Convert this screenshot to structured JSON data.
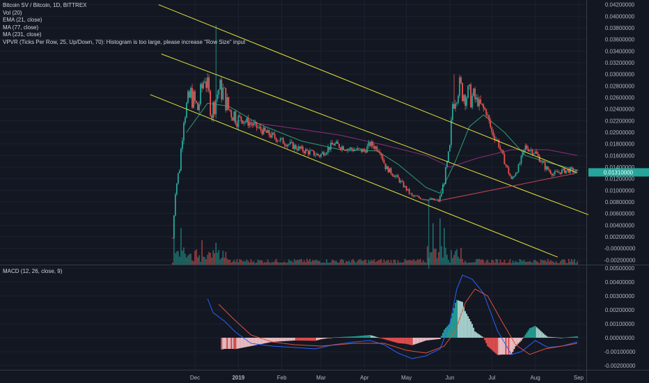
{
  "legend": {
    "symbol": "Bitcoin SV / Bitcoin, 1D, BITTREX",
    "indicators": [
      "Vol (20)",
      "EMA (21, close)",
      "MA (77, close)",
      "MA (231, close)",
      "VPVR (Ticks Per Row, 25, Up/Down, 70): Histogram is too large, please increase \"Row Size\" input"
    ],
    "macd": "MACD (12, 26, close, 9)"
  },
  "colors": {
    "background": "#131722",
    "grid": "#1e2230",
    "up": "#26a69a",
    "down": "#ef5350",
    "trendline": "#e7e63a",
    "support": "#c84650",
    "ema": "#2e9e73",
    "ma231": "#8a2f7d",
    "macd_line": "#2962ff",
    "signal_line": "#e04f3a",
    "text": "#b2b5be"
  },
  "chart_data": [
    {
      "type": "candlestick",
      "panel": "price",
      "x_axis_labels": [
        "Dec",
        "2019",
        "Feb",
        "Mar",
        "Apr",
        "May",
        "Jun",
        "Jul",
        "Aug",
        "Sep"
      ],
      "y_ticks": [
        "0.04200000",
        "0.04000000",
        "0.03800000",
        "0.03600000",
        "0.03400000",
        "0.03200000",
        "0.03000000",
        "0.02800000",
        "0.02600000",
        "0.02400000",
        "0.02200000",
        "0.02000000",
        "0.01800000",
        "0.01600000",
        "0.01400000",
        "0.01200000",
        "0.01000000",
        "0.00800000",
        "0.00600000",
        "0.00400000",
        "0.00200000",
        "-0.00000000",
        "-0.00200000"
      ],
      "ylim": [
        -0.0028,
        0.0428
      ],
      "date_range": [
        "2018-11-15",
        "2019-08-31"
      ],
      "current_price_label": "0.01310000",
      "close_keypoints": [
        [
          "2018-11-15",
          0.0018
        ],
        [
          "2018-11-17",
          0.01
        ],
        [
          "2018-11-20",
          0.014
        ],
        [
          "2018-11-23",
          0.023
        ],
        [
          "2018-11-28",
          0.0265
        ],
        [
          "2018-12-03",
          0.024
        ],
        [
          "2018-12-08",
          0.03
        ],
        [
          "2018-12-13",
          0.0235
        ],
        [
          "2018-12-18",
          0.0275
        ],
        [
          "2018-12-21",
          0.027
        ],
        [
          "2018-12-25",
          0.024
        ],
        [
          "2019-01-01",
          0.0225
        ],
        [
          "2019-01-10",
          0.0215
        ],
        [
          "2019-01-20",
          0.02
        ],
        [
          "2019-02-01",
          0.0185
        ],
        [
          "2019-02-15",
          0.017
        ],
        [
          "2019-02-28",
          0.016
        ],
        [
          "2019-03-10",
          0.018
        ],
        [
          "2019-03-20",
          0.0172
        ],
        [
          "2019-04-01",
          0.0168
        ],
        [
          "2019-04-05",
          0.018
        ],
        [
          "2019-04-12",
          0.017
        ],
        [
          "2019-04-16",
          0.014
        ],
        [
          "2019-04-25",
          0.012
        ],
        [
          "2019-05-05",
          0.009
        ],
        [
          "2019-05-15",
          0.0085
        ],
        [
          "2019-05-24",
          0.0082
        ],
        [
          "2019-05-26",
          0.0095
        ],
        [
          "2019-05-29",
          0.013
        ],
        [
          "2019-06-01",
          0.017
        ],
        [
          "2019-06-03",
          0.025
        ],
        [
          "2019-06-07",
          0.028
        ],
        [
          "2019-06-10",
          0.027
        ],
        [
          "2019-06-20",
          0.0255
        ],
        [
          "2019-06-27",
          0.0235
        ],
        [
          "2019-07-01",
          0.02
        ],
        [
          "2019-07-05",
          0.0185
        ],
        [
          "2019-07-10",
          0.015
        ],
        [
          "2019-07-15",
          0.0118
        ],
        [
          "2019-07-20",
          0.014
        ],
        [
          "2019-07-25",
          0.0175
        ],
        [
          "2019-08-01",
          0.0165
        ],
        [
          "2019-08-08",
          0.014
        ],
        [
          "2019-08-14",
          0.0128
        ],
        [
          "2019-08-20",
          0.0133
        ],
        [
          "2019-08-26",
          0.0135
        ],
        [
          "2019-08-31",
          0.0131
        ]
      ],
      "spikes": [
        {
          "date": "2018-12-16",
          "high": 0.0385
        },
        {
          "date": "2019-05-17",
          "low": -0.0035
        },
        {
          "date": "2019-06-04",
          "high": 0.03
        }
      ],
      "overlays": {
        "ema21": [
          [
            "2018-11-25",
            0.02
          ],
          [
            "2018-12-10",
            0.025
          ],
          [
            "2018-12-25",
            0.0245
          ],
          [
            "2019-01-15",
            0.0215
          ],
          [
            "2019-02-15",
            0.0185
          ],
          [
            "2019-03-15",
            0.017
          ],
          [
            "2019-04-10",
            0.0168
          ],
          [
            "2019-04-25",
            0.0145
          ],
          [
            "2019-05-15",
            0.0105
          ],
          [
            "2019-05-25",
            0.0095
          ],
          [
            "2019-06-05",
            0.015
          ],
          [
            "2019-06-15",
            0.021
          ],
          [
            "2019-06-25",
            0.023
          ],
          [
            "2019-07-10",
            0.02
          ],
          [
            "2019-07-25",
            0.016
          ],
          [
            "2019-08-10",
            0.0148
          ],
          [
            "2019-08-31",
            0.0135
          ]
        ],
        "ma231": [
          [
            "2019-01-01",
            0.022
          ],
          [
            "2019-02-15",
            0.0205
          ],
          [
            "2019-03-15",
            0.0195
          ],
          [
            "2019-04-15",
            0.0178
          ],
          [
            "2019-05-15",
            0.016
          ],
          [
            "2019-06-01",
            0.014
          ],
          [
            "2019-06-20",
            0.0155
          ],
          [
            "2019-07-15",
            0.017
          ],
          [
            "2019-08-10",
            0.017
          ],
          [
            "2019-08-31",
            0.016
          ]
        ]
      },
      "trendlines": [
        {
          "color": "trendline",
          "from": [
            "2018-11-05",
            0.042
          ],
          "to": [
            "2019-08-31",
            0.013
          ]
        },
        {
          "color": "trendline",
          "from": [
            "2018-11-07",
            0.0335
          ],
          "to": [
            "2019-09-08",
            0.0058
          ]
        },
        {
          "color": "trendline",
          "from": [
            "2018-10-30",
            0.0265
          ],
          "to": [
            "2019-08-17",
            -0.0015
          ]
        },
        {
          "color": "support",
          "from": [
            "2019-05-24",
            0.0082
          ],
          "to": [
            "2019-08-31",
            0.013
          ]
        }
      ]
    },
    {
      "type": "bar",
      "panel": "volume",
      "series": [
        {
          "name": "Vol (20)"
        }
      ],
      "note_spikes": [
        [
          "2018-11-16",
          1.0
        ],
        [
          "2018-11-21",
          0.75
        ],
        [
          "2018-12-06",
          0.5
        ],
        [
          "2018-12-16",
          0.45
        ],
        [
          "2019-05-20",
          0.85
        ],
        [
          "2019-05-25",
          0.95
        ],
        [
          "2019-05-28",
          0.75
        ]
      ]
    },
    {
      "type": "histogram",
      "panel": "macd",
      "y_ticks": [
        "0.00500000",
        "0.00400000",
        "0.00300000",
        "0.00200000",
        "0.00100000",
        "0.00000000",
        "-0.00100000",
        "-0.00200000"
      ],
      "ylim": [
        -0.0023,
        0.0052
      ],
      "macd_line": [
        [
          "2018-12-10",
          0.0028
        ],
        [
          "2018-12-14",
          0.0018
        ],
        [
          "2018-12-22",
          0.0012
        ],
        [
          "2018-12-30",
          0.0004
        ],
        [
          "2019-01-10",
          -0.0004
        ],
        [
          "2019-01-25",
          -0.0006
        ],
        [
          "2019-02-10",
          -0.0007
        ],
        [
          "2019-02-25",
          -0.0008
        ],
        [
          "2019-03-10",
          -0.0005
        ],
        [
          "2019-03-25",
          -0.0003
        ],
        [
          "2019-04-05",
          -0.0002
        ],
        [
          "2019-04-15",
          -0.0005
        ],
        [
          "2019-04-25",
          -0.0011
        ],
        [
          "2019-05-05",
          -0.0015
        ],
        [
          "2019-05-15",
          -0.0013
        ],
        [
          "2019-05-25",
          -0.0008
        ],
        [
          "2019-06-01",
          0.001
        ],
        [
          "2019-06-06",
          0.0035
        ],
        [
          "2019-06-10",
          0.0045
        ],
        [
          "2019-06-17",
          0.0042
        ],
        [
          "2019-06-25",
          0.0032
        ],
        [
          "2019-07-05",
          0.0005
        ],
        [
          "2019-07-15",
          -0.0012
        ],
        [
          "2019-07-22",
          -0.001
        ],
        [
          "2019-08-01",
          -0.0002
        ],
        [
          "2019-08-10",
          -0.0007
        ],
        [
          "2019-08-20",
          -0.0006
        ],
        [
          "2019-08-31",
          -0.0003
        ]
      ],
      "signal_line": [
        [
          "2018-12-18",
          0.0024
        ],
        [
          "2018-12-28",
          0.0014
        ],
        [
          "2019-01-10",
          0.0002
        ],
        [
          "2019-01-25",
          -0.0003
        ],
        [
          "2019-02-10",
          -0.0005
        ],
        [
          "2019-03-01",
          -0.0006
        ],
        [
          "2019-03-25",
          -0.0004
        ],
        [
          "2019-04-15",
          -0.0004
        ],
        [
          "2019-05-01",
          -0.0009
        ],
        [
          "2019-05-15",
          -0.0011
        ],
        [
          "2019-05-28",
          -0.0006
        ],
        [
          "2019-06-05",
          0.0005
        ],
        [
          "2019-06-12",
          0.0025
        ],
        [
          "2019-06-19",
          0.0035
        ],
        [
          "2019-06-28",
          0.003
        ],
        [
          "2019-07-08",
          0.0012
        ],
        [
          "2019-07-18",
          -0.0005
        ],
        [
          "2019-07-28",
          -0.0012
        ],
        [
          "2019-08-08",
          -0.0008
        ],
        [
          "2019-08-20",
          -0.0006
        ],
        [
          "2019-08-31",
          -0.0004
        ]
      ]
    }
  ]
}
